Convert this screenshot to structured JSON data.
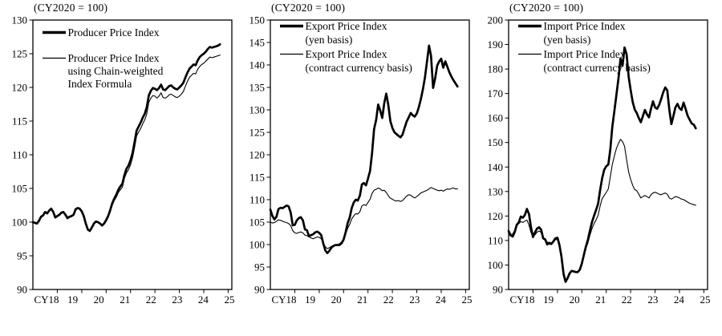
{
  "page": {
    "background": "#ffffff",
    "line_color": "#000000",
    "index_base_note": "(CY2020 = 100)"
  },
  "chart_data": [
    {
      "type": "line",
      "corner_label": "(CY2020 = 100)",
      "x_tick_labels": [
        "CY18",
        "19",
        "20",
        "21",
        "22",
        "23",
        "24",
        "25"
      ],
      "x_frequency": "monthly",
      "x_start": "2018-01",
      "x_end": "2025-09",
      "y_min": 90,
      "y_max": 130,
      "y_ticks": [
        130,
        125,
        120,
        115,
        110,
        105,
        100,
        95,
        90
      ],
      "legend_position": "top-left-inside",
      "series": [
        {
          "name": "Producer Price Index",
          "legend_lines": [
            "Producer Price Index"
          ],
          "style": "bold",
          "values": [
            100.0,
            99.9,
            99.8,
            100.2,
            100.8,
            101.0,
            101.5,
            101.3,
            101.7,
            102.0,
            101.5,
            100.7,
            100.9,
            101.1,
            101.4,
            101.5,
            101.1,
            100.6,
            100.8,
            100.9,
            101.1,
            101.9,
            102.1,
            102.0,
            101.6,
            100.9,
            99.8,
            98.9,
            98.7,
            99.2,
            99.8,
            100.1,
            100.0,
            99.8,
            99.5,
            99.8,
            100.3,
            100.9,
            101.8,
            102.8,
            103.5,
            104.1,
            104.8,
            105.3,
            105.7,
            107.0,
            107.9,
            108.4,
            109.2,
            110.3,
            111.9,
            113.6,
            114.2,
            114.8,
            115.5,
            116.1,
            117.1,
            118.8,
            119.5,
            119.9,
            119.8,
            119.6,
            119.9,
            120.4,
            119.7,
            119.6,
            119.9,
            120.2,
            120.3,
            120.0,
            119.8,
            119.7,
            120.0,
            120.3,
            120.7,
            121.5,
            122.2,
            122.8,
            123.1,
            123.4,
            123.3,
            124.0,
            124.5,
            124.8,
            125.0,
            125.3,
            125.7,
            126.0,
            125.9,
            126.0,
            126.1,
            126.2,
            126.4
          ]
        },
        {
          "name": "Producer Price Index using Chain-weighted Index Formula",
          "legend_lines": [
            "Producer Price Index",
            "using Chain-weighted",
            "Index Formula"
          ],
          "style": "thin",
          "values": [
            99.9,
            99.8,
            99.7,
            100.1,
            100.7,
            100.9,
            101.4,
            101.2,
            101.6,
            101.9,
            101.4,
            100.6,
            100.8,
            101.0,
            101.3,
            101.4,
            101.0,
            100.5,
            100.7,
            100.8,
            101.0,
            101.8,
            102.0,
            101.9,
            101.5,
            100.8,
            99.7,
            98.8,
            98.6,
            99.1,
            99.7,
            100.0,
            99.9,
            99.7,
            99.4,
            99.7,
            100.1,
            100.7,
            101.5,
            102.5,
            103.2,
            103.7,
            104.4,
            104.8,
            105.2,
            106.5,
            107.3,
            107.8,
            108.5,
            109.6,
            111.1,
            112.8,
            113.4,
            113.9,
            114.6,
            115.2,
            116.1,
            117.8,
            118.4,
            118.8,
            118.7,
            118.4,
            118.7,
            119.2,
            118.5,
            118.4,
            118.6,
            118.9,
            119.0,
            118.8,
            118.6,
            118.5,
            118.7,
            119.0,
            119.4,
            120.2,
            120.9,
            121.5,
            121.8,
            122.1,
            122.0,
            122.7,
            123.1,
            123.4,
            123.6,
            123.9,
            124.2,
            124.5,
            124.4,
            124.5,
            124.6,
            124.7,
            124.8
          ]
        }
      ]
    },
    {
      "type": "line",
      "corner_label": "(CY2020 = 100)",
      "x_tick_labels": [
        "CY18",
        "19",
        "20",
        "21",
        "22",
        "23",
        "24",
        "25"
      ],
      "x_frequency": "monthly",
      "x_start": "2018-01",
      "x_end": "2025-09",
      "y_min": 90,
      "y_max": 150,
      "y_ticks": [
        150,
        145,
        140,
        135,
        130,
        125,
        120,
        115,
        110,
        105,
        100,
        95,
        90
      ],
      "legend_position": "top-left-inside",
      "series": [
        {
          "name": "Export Price Index (yen basis)",
          "legend_lines": [
            "Export Price Index",
            "(yen basis)"
          ],
          "style": "bold",
          "values": [
            107.8,
            106.4,
            105.6,
            106.2,
            107.9,
            108.2,
            108.1,
            108.4,
            108.7,
            108.5,
            107.1,
            104.3,
            104.4,
            105.4,
            105.9,
            106.1,
            105.4,
            103.4,
            103.2,
            101.9,
            102.1,
            102.3,
            102.7,
            102.9,
            102.6,
            102.1,
            100.3,
            98.7,
            98.1,
            98.6,
            99.3,
            99.7,
            99.9,
            99.9,
            99.9,
            100.3,
            101.1,
            102.7,
            104.8,
            106.0,
            108.1,
            109.4,
            110.0,
            109.8,
            110.9,
            113.4,
            113.7,
            113.2,
            114.7,
            116.4,
            120.4,
            125.7,
            127.8,
            131.2,
            129.9,
            128.2,
            131.5,
            133.6,
            131.0,
            127.5,
            126.0,
            125.0,
            124.6,
            124.2,
            123.9,
            124.5,
            126.0,
            127.4,
            128.3,
            129.3,
            128.8,
            128.5,
            129.2,
            130.6,
            132.4,
            134.6,
            137.2,
            140.8,
            144.3,
            142.0,
            134.9,
            137.0,
            139.8,
            140.8,
            141.4,
            139.4,
            140.8,
            139.6,
            138.4,
            137.4,
            136.6,
            135.9,
            135.2
          ]
        },
        {
          "name": "Export Price Index (contract currency basis)",
          "legend_lines": [
            "Export Price Index",
            "(contract currency basis)"
          ],
          "style": "thin",
          "values": [
            105.0,
            104.8,
            104.9,
            105.2,
            105.5,
            105.4,
            105.2,
            105.0,
            104.9,
            104.7,
            104.2,
            103.1,
            102.6,
            102.5,
            102.7,
            102.8,
            102.6,
            102.1,
            102.0,
            101.7,
            101.5,
            101.3,
            101.5,
            101.7,
            101.6,
            101.3,
            100.4,
            99.5,
            99.1,
            99.3,
            99.6,
            99.8,
            99.9,
            100.0,
            100.2,
            100.6,
            101.3,
            102.3,
            103.6,
            104.5,
            105.7,
            106.4,
            106.9,
            106.8,
            107.3,
            108.6,
            108.9,
            108.7,
            109.4,
            110.1,
            111.4,
            112.1,
            112.3,
            112.6,
            112.4,
            112.0,
            112.1,
            111.6,
            110.9,
            110.3,
            110.1,
            109.8,
            109.7,
            109.8,
            109.6,
            109.8,
            110.3,
            110.8,
            111.1,
            111.0,
            110.6,
            110.4,
            110.7,
            111.1,
            111.5,
            111.7,
            111.9,
            112.1,
            112.4,
            112.7,
            112.5,
            112.3,
            112.1,
            112.0,
            112.1,
            111.9,
            112.2,
            112.4,
            112.3,
            112.5,
            112.6,
            112.4,
            112.4
          ]
        }
      ]
    },
    {
      "type": "line",
      "corner_label": "(CY2020 = 100)",
      "x_tick_labels": [
        "CY18",
        "19",
        "20",
        "21",
        "22",
        "23",
        "24",
        "25"
      ],
      "x_frequency": "monthly",
      "x_start": "2018-01",
      "x_end": "2025-09",
      "y_min": 90,
      "y_max": 200,
      "y_ticks": [
        200,
        190,
        180,
        170,
        160,
        150,
        140,
        130,
        120,
        110,
        100,
        90
      ],
      "legend_position": "top-left-inside",
      "series": [
        {
          "name": "Import Price Index (yen basis)",
          "legend_lines": [
            "Import Price Index",
            "(yen basis)"
          ],
          "style": "bold",
          "values": [
            113.9,
            112.1,
            111.6,
            113.4,
            116.4,
            117.4,
            119.8,
            119.3,
            120.4,
            122.9,
            120.8,
            115.4,
            111.4,
            113.4,
            114.9,
            115.4,
            114.4,
            110.9,
            110.4,
            108.4,
            108.9,
            108.6,
            109.6,
            110.9,
            111.1,
            108.1,
            103.4,
            96.4,
            93.1,
            94.6,
            96.6,
            97.6,
            97.4,
            97.1,
            97.1,
            98.1,
            100.6,
            104.1,
            107.6,
            110.4,
            114.1,
            117.6,
            120.1,
            122.4,
            125.1,
            130.6,
            135.4,
            138.9,
            140.3,
            141.0,
            147.3,
            156.5,
            163.0,
            169.5,
            176.0,
            184.3,
            181.3,
            188.8,
            186.0,
            177.0,
            171.5,
            166.5,
            163.5,
            162.0,
            160.0,
            158.3,
            160.8,
            163.3,
            161.5,
            160.3,
            163.8,
            166.8,
            164.3,
            163.8,
            165.3,
            167.8,
            170.5,
            172.5,
            171.3,
            163.5,
            157.5,
            160.8,
            164.3,
            165.8,
            164.0,
            163.3,
            166.3,
            163.8,
            161.0,
            159.3,
            157.8,
            157.3,
            155.8
          ]
        },
        {
          "name": "Import Price Index (contract currency basis)",
          "legend_lines": [
            "Import Price Index",
            "(contract currency basis)"
          ],
          "style": "thin",
          "values": [
            112.9,
            112.4,
            112.7,
            114.0,
            116.0,
            116.9,
            117.7,
            117.4,
            117.9,
            118.4,
            116.3,
            113.3,
            111.5,
            112.4,
            113.4,
            113.9,
            113.3,
            111.0,
            110.7,
            109.2,
            109.3,
            109.0,
            109.5,
            110.3,
            110.5,
            107.9,
            103.6,
            96.9,
            93.7,
            95.1,
            96.9,
            97.8,
            97.6,
            97.3,
            97.4,
            98.4,
            100.5,
            103.7,
            106.7,
            109.1,
            112.2,
            114.9,
            116.9,
            118.4,
            120.3,
            124.1,
            127.1,
            128.4,
            129.6,
            131.1,
            136.1,
            141.1,
            144.6,
            147.6,
            149.6,
            151.3,
            150.4,
            148.5,
            143.0,
            138.0,
            135.0,
            132.5,
            130.8,
            130.3,
            128.9,
            127.4,
            127.9,
            128.4,
            127.9,
            127.4,
            128.7,
            129.4,
            129.7,
            129.4,
            128.9,
            128.7,
            129.1,
            129.4,
            128.9,
            127.4,
            126.9,
            127.4,
            127.9,
            127.7,
            127.4,
            126.9,
            126.7,
            126.2,
            125.7,
            125.2,
            124.9,
            124.6,
            124.4
          ]
        }
      ]
    }
  ]
}
